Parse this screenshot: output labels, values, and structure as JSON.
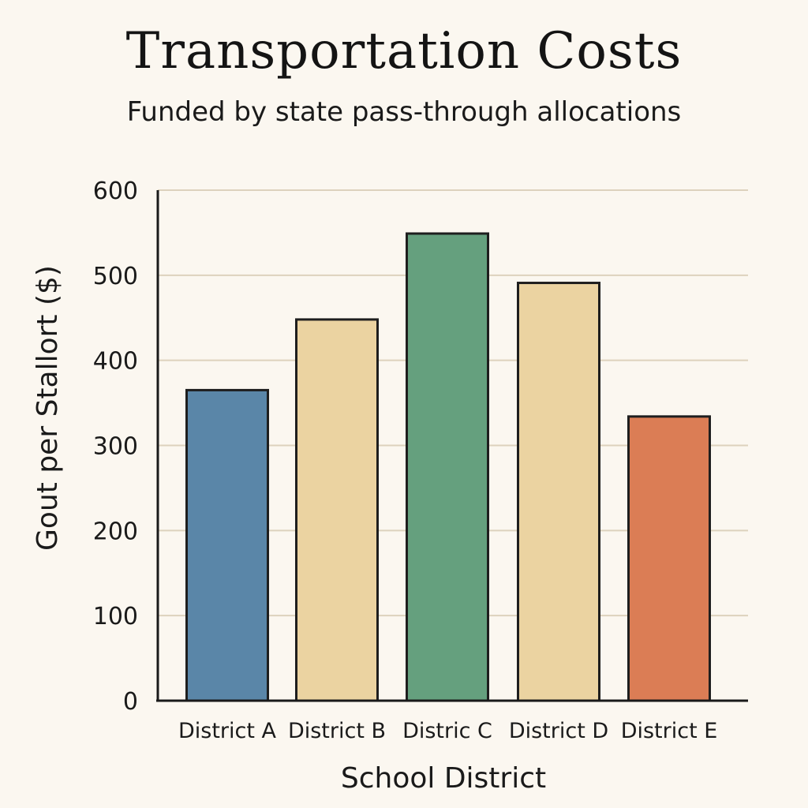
{
  "chart_data": {
    "type": "bar",
    "title": "Transportation Costs",
    "subtitle": "Funded by state pass-through allocations",
    "xlabel": "School District",
    "ylabel": "Gout per Stallort ($)",
    "categories": [
      "District A",
      "District B",
      "Distric C",
      "District D",
      "District E"
    ],
    "values": [
      365,
      448,
      549,
      491,
      334
    ],
    "colors": [
      "#5a86a8",
      "#ebd3a1",
      "#65a07e",
      "#ebd3a1",
      "#db7d55"
    ],
    "ylim": [
      0,
      600
    ],
    "yticks": [
      0,
      100,
      200,
      300,
      400,
      500,
      600
    ],
    "grid": true,
    "legend": "none"
  },
  "style": {
    "background": "#fbf7f0",
    "gridline_color": "#ddd2bd",
    "axis_color": "#1a1a1a",
    "bar_outline": "#1e1e1e"
  }
}
